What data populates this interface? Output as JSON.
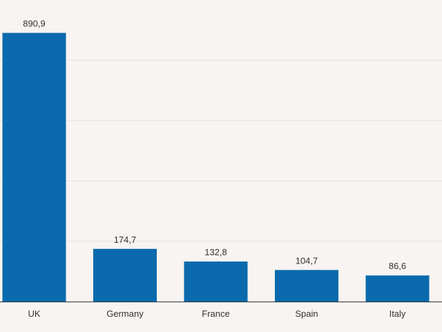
{
  "chart_data": {
    "type": "bar",
    "categories": [
      "UK",
      "Germany",
      "France",
      "Spain",
      "Italy"
    ],
    "values": [
      890.9,
      174.7,
      132.8,
      104.7,
      86.6
    ],
    "value_labels": [
      "890,9",
      "174,7",
      "132,8",
      "104,7",
      "86,6"
    ],
    "title": "",
    "xlabel": "",
    "ylabel": "",
    "ylim": [
      0,
      1000
    ],
    "grid": true,
    "bar_color": "#0a6aad",
    "background": "#f7f4f1"
  }
}
